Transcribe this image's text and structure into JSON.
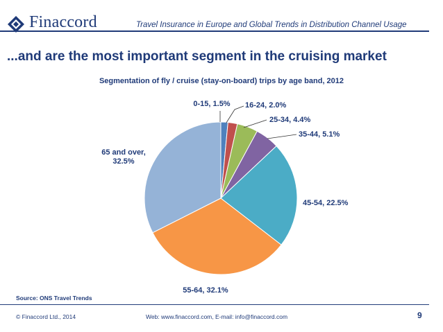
{
  "header": {
    "logo_text": "Finaccord",
    "report_title": "Travel Insurance in Europe and Global Trends in Distribution Channel Usage"
  },
  "slide": {
    "title": "...and are the most important segment in the cruising market"
  },
  "chart_data": {
    "type": "pie",
    "title": "Segmentation of fly / cruise (stay-on-board) trips by age band, 2012",
    "unit": "%",
    "slices": [
      {
        "label": "0-15",
        "value": 1.5,
        "display": "0-15, 1.5%",
        "color": "#4f81bd"
      },
      {
        "label": "16-24",
        "value": 2.0,
        "display": "16-24, 2.0%",
        "color": "#c0504d"
      },
      {
        "label": "25-34",
        "value": 4.4,
        "display": "25-34, 4.4%",
        "color": "#9bbb59"
      },
      {
        "label": "35-44",
        "value": 5.1,
        "display": "35-44, 5.1%",
        "color": "#8064a2"
      },
      {
        "label": "45-54",
        "value": 22.5,
        "display": "45-54, 22.5%",
        "color": "#4bacc6"
      },
      {
        "label": "55-64",
        "value": 32.1,
        "display": "55-64, 32.1%",
        "color": "#f79646"
      },
      {
        "label": "65 and over",
        "value": 32.5,
        "display_lines": [
          "65 and over,",
          "32.5%"
        ],
        "color": "#95b3d7"
      }
    ]
  },
  "footer": {
    "source": "Source: ONS Travel Trends",
    "copyright": "© Finaccord Ltd., 2014",
    "contact": "Web: www.finaccord.com, E-mail: info@finaccord.com",
    "page_number": "9"
  }
}
